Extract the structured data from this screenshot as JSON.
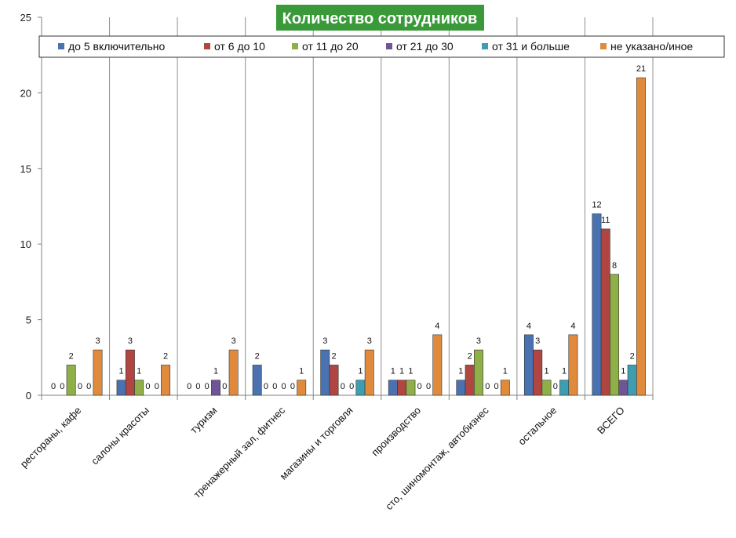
{
  "chart_data": {
    "type": "bar",
    "title": "Количество сотрудников",
    "categories": [
      "рестораны, кафе",
      "салоны красоты",
      "туризм",
      "тренажерный зал, фитнес",
      "магазины и торговля",
      "производство",
      "сто, шиномонтаж, автобизнес",
      "остальное",
      "ВСЕГО"
    ],
    "series": [
      {
        "name": "до 5 включительно",
        "color": "#4a72b0",
        "values": [
          0,
          1,
          0,
          2,
          3,
          1,
          1,
          4,
          12
        ]
      },
      {
        "name": "от 6 до 10",
        "color": "#b04542",
        "values": [
          0,
          3,
          0,
          0,
          2,
          1,
          2,
          3,
          11
        ]
      },
      {
        "name": "от 11 до 20",
        "color": "#8faf48",
        "values": [
          2,
          1,
          0,
          0,
          0,
          1,
          3,
          1,
          8
        ]
      },
      {
        "name": "от 21 до 30",
        "color": "#6f5596",
        "values": [
          0,
          0,
          1,
          0,
          0,
          0,
          0,
          0,
          1
        ]
      },
      {
        "name": "от 31 и больше",
        "color": "#3f9db1",
        "values": [
          0,
          0,
          0,
          0,
          1,
          0,
          0,
          1,
          2
        ]
      },
      {
        "name": "не указано/иное",
        "color": "#e08a3c",
        "values": [
          3,
          2,
          3,
          1,
          3,
          4,
          1,
          4,
          21
        ]
      }
    ],
    "ylim": [
      0,
      25
    ],
    "yticks": [
      0,
      5,
      10,
      15,
      20,
      25
    ],
    "xlabel": "",
    "ylabel": "",
    "legend_position": "top",
    "grid": "vertical category separators",
    "title_background": "#3a9a3a",
    "title_color": "#ffffff"
  }
}
